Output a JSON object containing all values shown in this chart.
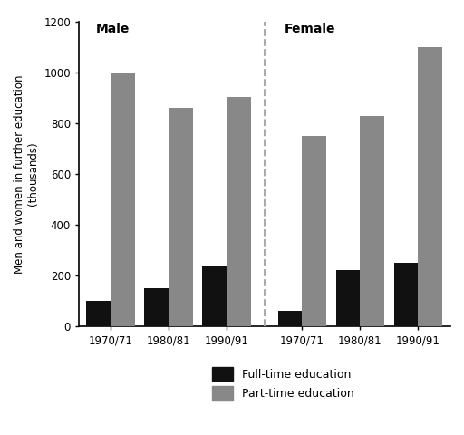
{
  "male_fulltime": [
    100,
    150,
    240
  ],
  "male_parttime": [
    1000,
    860,
    905
  ],
  "female_fulltime": [
    60,
    220,
    250
  ],
  "female_parttime": [
    750,
    830,
    1100
  ],
  "periods": [
    "1970/71",
    "1980/81",
    "1990/91"
  ],
  "ylabel1": "Men and women in further education",
  "ylabel2": "(thousands)",
  "ylim": [
    0,
    1200
  ],
  "yticks": [
    0,
    200,
    400,
    600,
    800,
    1000,
    1200
  ],
  "fulltime_color": "#111111",
  "parttime_color": "#888888",
  "bar_width": 0.42,
  "male_label": "Male",
  "female_label": "Female",
  "legend_fulltime": "Full-time education",
  "legend_parttime": "Part-time education",
  "bg_color": "#ffffff"
}
